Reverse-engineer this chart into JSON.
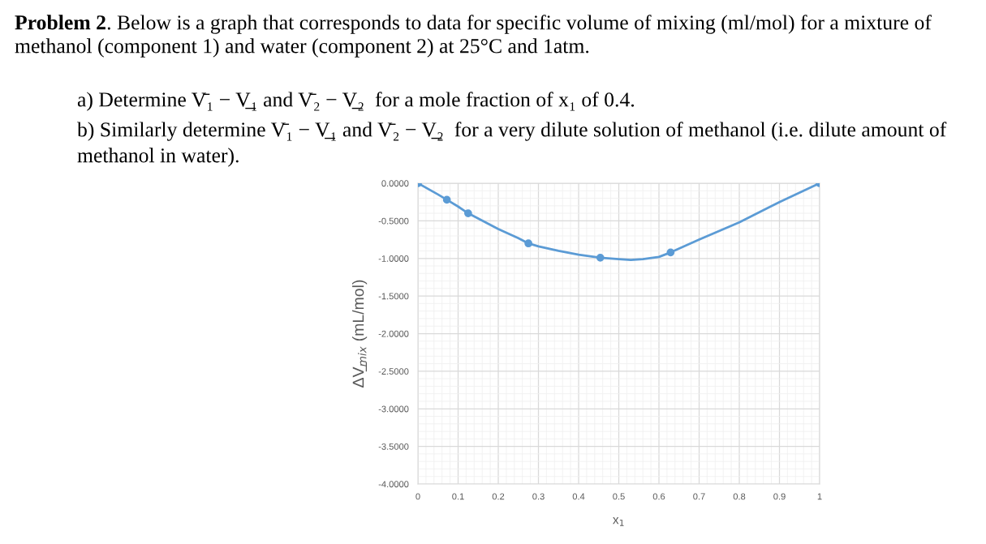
{
  "chart_data": {
    "type": "line",
    "title": "Problem 2",
    "annotations": [
      ". Below is a graph that corresponds to data for specific volume of mixing (ml/mol) for a mixture of",
      "methanol (component 1) and water (component 2) at 25°C and 1atm.",
      "a) Determine V̄₁ − V̲₁ and V̄₂ − V̲₂  for a mole fraction of x₁ of 0.4.",
      "b) Similarly determine V̄₁ − V̲₁ and V̄₂ − V̲₂  for a very dilute solution of methanol (i.e. dilute amount of",
      "methanol in water)."
    ],
    "xlabel": "x$_{1}$",
    "ylabel": "ΔV̲$_{mix}$ (mL/mol)",
    "x": [
      0,
      0.072,
      0.125,
      0.275,
      0.454,
      0.629,
      1
    ],
    "series": [
      {
        "marker": "none",
        "color": "#5b9bd5",
        "x": [
          0,
          0.05,
          0.072,
          0.1,
          0.125,
          0.15,
          0.2,
          0.25,
          0.275,
          0.3,
          0.35,
          0.4,
          0.454,
          0.5,
          0.53,
          0.56,
          0.6,
          0.629,
          0.7,
          0.8,
          0.9,
          1
        ],
        "values": [
          0,
          -0.15,
          -0.22,
          -0.31,
          -0.4,
          -0.47,
          -0.61,
          -0.73,
          -0.8,
          -0.84,
          -0.9,
          -0.95,
          -0.99,
          -1.01,
          -1.02,
          -1.01,
          -0.98,
          -0.92,
          -0.75,
          -0.52,
          -0.25,
          0
        ]
      },
      {
        "type": "scatter",
        "marker": "circle",
        "color": "#5b9bd5",
        "values": [
          0,
          -0.22,
          -0.4,
          -0.8,
          -0.99,
          -0.92,
          0
        ]
      }
    ],
    "xlim": [
      0,
      1
    ],
    "xticks": [
      0,
      0.1,
      0.2,
      0.3,
      0.4,
      0.5,
      0.6,
      0.7,
      0.8,
      0.9,
      1
    ],
    "ylim": [
      -4,
      0
    ],
    "yticks": [
      {
        "value": -4,
        "label": "-4.0000"
      },
      {
        "value": -3.5,
        "label": "-3.5000"
      },
      {
        "value": -3,
        "label": "-3.0000"
      },
      {
        "value": -2.5,
        "label": "-2.5000"
      },
      {
        "value": -2,
        "label": "-2.0000"
      },
      {
        "value": -1.5,
        "label": "-1.5000"
      },
      {
        "value": -1,
        "label": "-1.0000"
      },
      {
        "value": -0.5,
        "label": "-0.5000"
      },
      {
        "value": 0,
        "label": "0.0000"
      }
    ],
    "grid": true,
    "line_style": "solid",
    "legend": false
  }
}
